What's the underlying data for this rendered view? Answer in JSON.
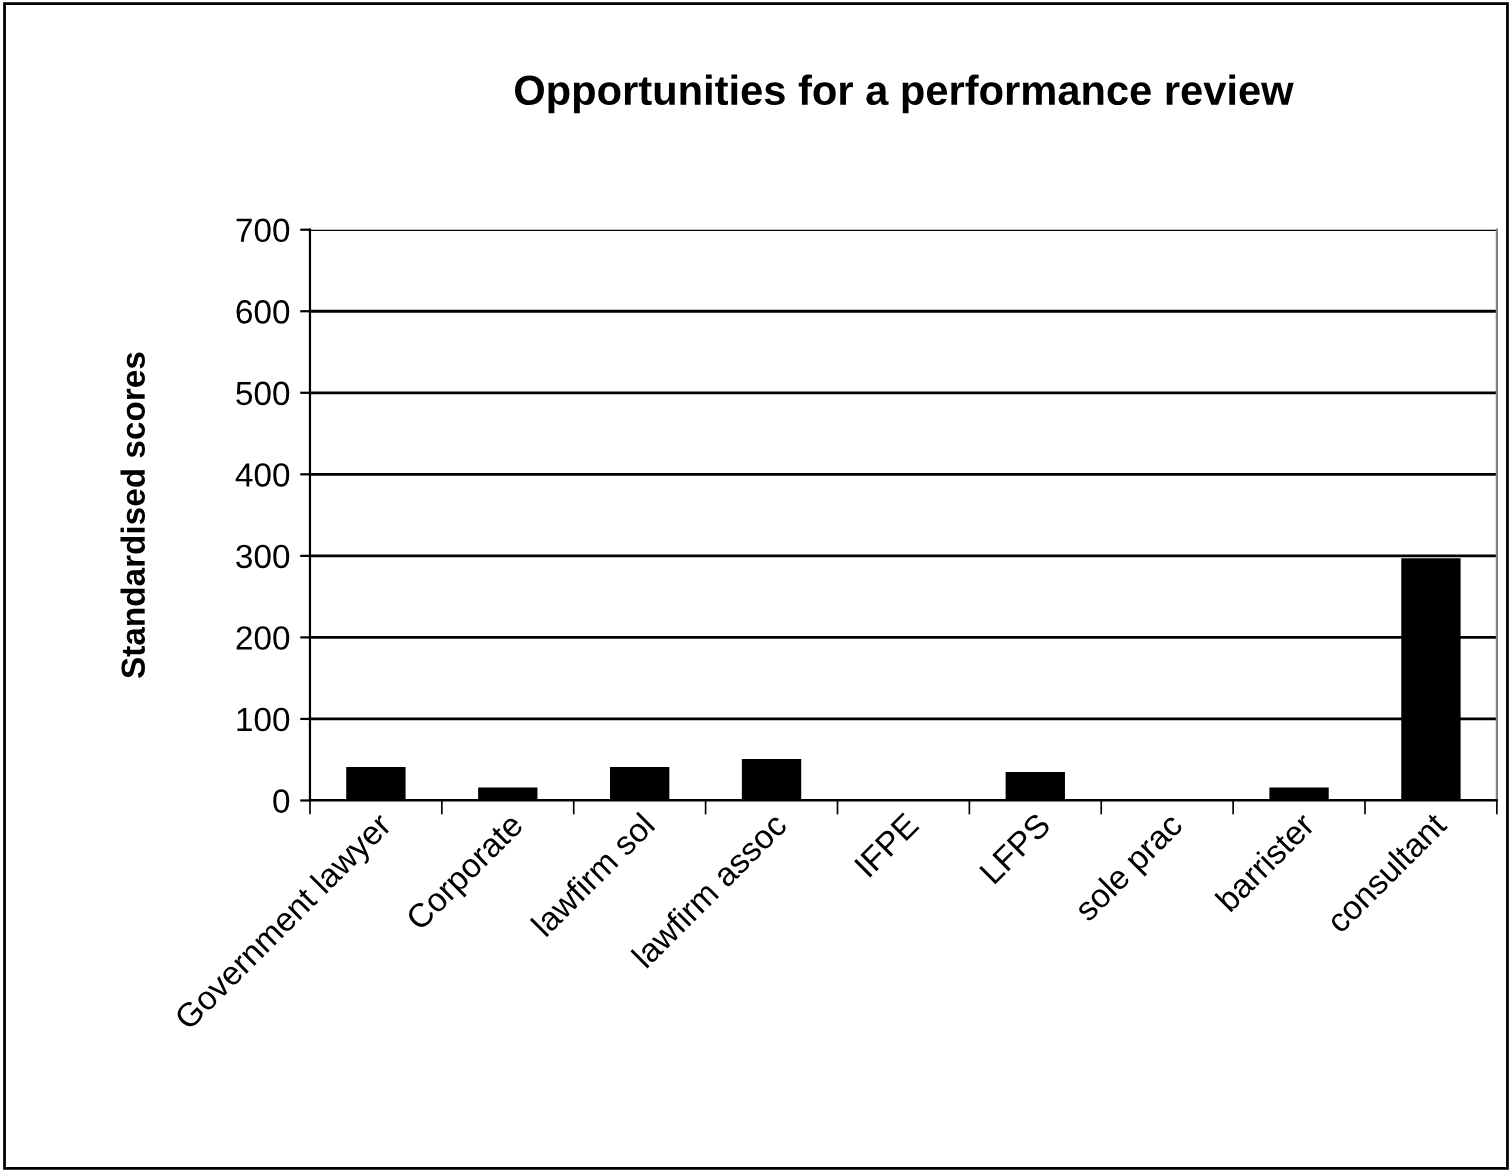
{
  "chart_data": {
    "type": "bar",
    "title": "Opportunities for a performance review",
    "ylabel": "Standardised scores",
    "categories": [
      "Government lawyer",
      "Corporate",
      "lawfirm sol",
      "lawfirm assoc",
      "IFPE",
      "LFPS",
      "sole prac",
      "barrister",
      "consultant"
    ],
    "values": [
      41,
      16,
      41,
      51,
      0,
      35,
      0,
      16,
      297
    ],
    "color": "#000000",
    "ylim": [
      0,
      700
    ],
    "yticks": [
      0,
      100,
      200,
      300,
      400,
      500,
      600,
      700
    ],
    "grid": "y"
  }
}
